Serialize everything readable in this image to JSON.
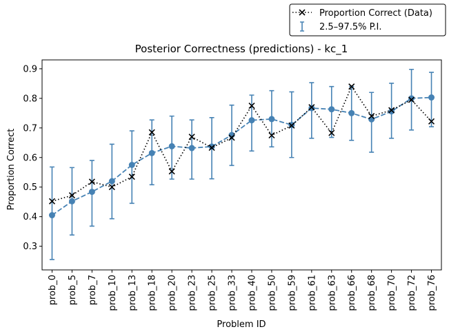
{
  "chart_data": {
    "type": "line",
    "title": "Posterior Correctness (predictions) - kc_1",
    "xlabel": "Problem ID",
    "ylabel": "Proportion Correct",
    "ylim": [
      0.22,
      0.93
    ],
    "yticks": [
      0.3,
      0.4,
      0.5,
      0.6,
      0.7,
      0.8,
      0.9
    ],
    "grid": false,
    "legend_position": "top-right (above plot)",
    "categories": [
      "prob_0",
      "prob_5",
      "prob_7",
      "prob_10",
      "prob_13",
      "prob_18",
      "prob_20",
      "prob_23",
      "prob_25",
      "prob_33",
      "prob_40",
      "prob_50",
      "prob_59",
      "prob_61",
      "prob_63",
      "prob_66",
      "prob_68",
      "prob_70",
      "prob_72",
      "prob_76"
    ],
    "series": [
      {
        "name": "Proportion Correct (Data)",
        "marker": "x",
        "style": "dotted",
        "color": "#000000",
        "values": [
          0.452,
          0.472,
          0.518,
          0.5,
          0.535,
          0.685,
          0.553,
          0.67,
          0.633,
          0.667,
          0.775,
          0.675,
          0.708,
          0.77,
          0.683,
          0.84,
          0.74,
          0.76,
          0.795,
          0.722
        ]
      },
      {
        "name": "",
        "marker": "o",
        "style": "dashed",
        "color": "#4682b4",
        "values": [
          0.405,
          0.452,
          0.484,
          0.52,
          0.575,
          0.615,
          0.638,
          0.632,
          0.637,
          0.676,
          0.726,
          0.73,
          0.71,
          0.767,
          0.763,
          0.75,
          0.729,
          0.756,
          0.8,
          0.803
        ],
        "errorbar_label": "2.5–97.5% P.I.",
        "lower": [
          0.255,
          0.338,
          0.368,
          0.393,
          0.445,
          0.508,
          0.527,
          0.527,
          0.528,
          0.573,
          0.622,
          0.636,
          0.6,
          0.665,
          0.668,
          0.658,
          0.618,
          0.665,
          0.693,
          0.704
        ],
        "upper": [
          0.568,
          0.566,
          0.59,
          0.645,
          0.69,
          0.727,
          0.74,
          0.727,
          0.735,
          0.777,
          0.811,
          0.826,
          0.822,
          0.853,
          0.84,
          0.84,
          0.82,
          0.851,
          0.898,
          0.888
        ]
      }
    ]
  },
  "colors": {
    "data_line": "#000000",
    "prediction": "#4682b4",
    "axes": "#000000"
  }
}
